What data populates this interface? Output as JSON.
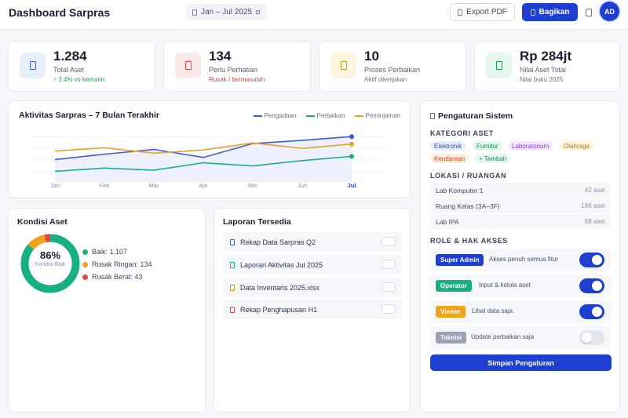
{
  "header": {
    "title": "Dashboard Sarpras",
    "date_range": "Jan – Jul 2025",
    "export_label": "Export PDF",
    "share_label": "Bagikan",
    "avatar_initials": "AD"
  },
  "stats": [
    {
      "value": "1.284",
      "label": "Total Aset",
      "sub": "↑ 3.4% vs kemarin",
      "sub_color": "#16a34a",
      "icon": "box-icon",
      "tint": "#e8efff",
      "accent": "#3b63e0"
    },
    {
      "value": "134",
      "label": "Perlu Perhatian",
      "sub": "Rusak / bermasalah",
      "sub_color": "#e04545",
      "icon": "alert-icon",
      "tint": "#fde9ea",
      "accent": "#e04545"
    },
    {
      "value": "10",
      "label": "Proses Perbaikan",
      "sub": "Aktif dikerjakan",
      "sub_color": "#6b7189",
      "icon": "wrench-icon",
      "tint": "#fdf5dd",
      "accent": "#d49a12"
    },
    {
      "value": "Rp 284jt",
      "label": "Nilai Aset Total",
      "sub": "Nilai buku 2025",
      "sub_color": "#6b7189",
      "icon": "wallet-icon",
      "tint": "#e5f7ec",
      "accent": "#16a34a"
    }
  ],
  "activity": {
    "title": "Aktivitas Sarpras – 7 Bulan Terakhir",
    "chart_data": {
      "type": "line",
      "categories": [
        "Jan",
        "Feb",
        "Mar",
        "Apr",
        "Mei",
        "Jun",
        "Jul"
      ],
      "series": [
        {
          "name": "Pengadaan",
          "color": "#3b5bd6",
          "values": [
            42,
            52,
            61,
            46,
            72,
            78,
            85
          ]
        },
        {
          "name": "Perbaikan",
          "color": "#16b082",
          "values": [
            20,
            26,
            22,
            36,
            30,
            40,
            48
          ]
        },
        {
          "name": "Peminjaman",
          "color": "#e8a22a",
          "values": [
            58,
            64,
            54,
            60,
            73,
            63,
            71
          ]
        }
      ],
      "ylim": [
        0,
        100
      ]
    }
  },
  "condition": {
    "title": "Kondisi Aset",
    "center_value": "86%",
    "center_label": "Kondisi Baik",
    "chart_data": {
      "type": "pie",
      "slices": [
        {
          "label": "Baik",
          "value": 1107,
          "color": "#16b082"
        },
        {
          "label": "Rusak Ringan",
          "value": 134,
          "color": "#f0a21a"
        },
        {
          "label": "Rusak Berat",
          "value": 43,
          "color": "#e04545"
        }
      ]
    },
    "legend": [
      "Baik: 1.107",
      "Rusak Ringan: 134",
      "Rusak Berat: 43"
    ]
  },
  "reports": {
    "title": "Laporan Tersedia",
    "items": [
      {
        "name": "Rekap Data Sarpras Q2",
        "color": "#3b63e0"
      },
      {
        "name": "Laporan Aktivitas Jul 2025",
        "color": "#16b082"
      },
      {
        "name": "Data Inventaris 2025.xlsx",
        "color": "#d49a12"
      },
      {
        "name": "Rekap Penghapusan H1",
        "color": "#e04545"
      }
    ]
  },
  "settings": {
    "title": "Pengaturan Sistem",
    "category_head": "KATEGORI ASET",
    "tags": [
      {
        "label": "Elektronik",
        "bg": "#e6edff",
        "fg": "#2c4fd0"
      },
      {
        "label": "Furnitur",
        "bg": "#e2f6ea",
        "fg": "#15894f"
      },
      {
        "label": "Laboratorium",
        "bg": "#f3e8fd",
        "fg": "#8a3bd1"
      },
      {
        "label": "Olahraga",
        "bg": "#fdf3dc",
        "fg": "#b27a08"
      },
      {
        "label": "Kendaraan",
        "bg": "#fdecdf",
        "fg": "#c2541a"
      },
      {
        "label": "+ Tambah",
        "bg": "#e8f6f1",
        "fg": "#168a6a"
      }
    ],
    "location_head": "LOKASI / RUANGAN",
    "locations": [
      {
        "name": "Lab Komputer 1",
        "count": "42 aset"
      },
      {
        "name": "Ruang Kelas (3A–3F)",
        "count": "186 aset"
      },
      {
        "name": "Lab IPA",
        "count": "68 aset"
      }
    ],
    "role_head": "ROLE & HAK AKSES",
    "roles": [
      {
        "badge": "Super Admin",
        "desc": "Akses penuh semua fitur",
        "color": "#1f3fd1",
        "on": true
      },
      {
        "badge": "Operator",
        "desc": "Input & kelola aset",
        "color": "#16b082",
        "on": true
      },
      {
        "badge": "Viewer",
        "desc": "Lihat data saja",
        "color": "#f0a21a",
        "on": true
      },
      {
        "badge": "Teknisi",
        "desc": "Update perbaikan saja",
        "color": "#9aa1b4",
        "on": false
      }
    ],
    "save_label": "Simpan Pengaturan"
  }
}
